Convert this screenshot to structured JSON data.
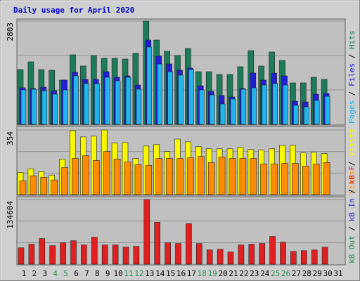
{
  "chart_data": {
    "type": "bar",
    "title": "Daily usage for April 2020",
    "separator": " / ",
    "categories": [
      "1",
      "2",
      "3",
      "4",
      "5",
      "6",
      "7",
      "8",
      "9",
      "10",
      "11",
      "12",
      "13",
      "14",
      "15",
      "16",
      "17",
      "18",
      "19",
      "20",
      "21",
      "22",
      "23",
      "24",
      "25",
      "26",
      "27",
      "28",
      "29",
      "30",
      "31"
    ],
    "category_colors": [
      "#000000",
      "#000000",
      "#000000",
      "#2e8b57",
      "#2e8b57",
      "#000000",
      "#000000",
      "#000000",
      "#000000",
      "#000000",
      "#2e8b57",
      "#2e8b57",
      "#000000",
      "#000000",
      "#000000",
      "#000000",
      "#000000",
      "#2e8b57",
      "#2e8b57",
      "#000000",
      "#000000",
      "#000000",
      "#000000",
      "#000000",
      "#2e8b57",
      "#2e8b57",
      "#000000",
      "#000000",
      "#000000",
      "#000000",
      "#000000"
    ],
    "panels": [
      {
        "ylim": [
          0,
          2803
        ],
        "yticks": [
          2803
        ],
        "series": [
          {
            "name": "Hits",
            "color": "#1e7b5a",
            "values": [
              1487,
              1697,
              1487,
              1468,
              1201,
              1888,
              1583,
              1869,
              1793,
              1793,
              1773,
              1926,
              2803,
              2288,
              1983,
              1869,
              2060,
              1430,
              1430,
              1354,
              1354,
              1564,
              2002,
              1583,
              1964,
              1735,
              1125,
              1125,
              1278,
              1220,
              null
            ]
          },
          {
            "name": "Files",
            "color": "#2020d0",
            "values": [
              992,
              972,
              1011,
              915,
              1201,
              1411,
              1220,
              1220,
              1430,
              1278,
              1316,
              1068,
              2288,
              1850,
              1640,
              1468,
              1526,
              1049,
              896,
              782,
              744,
              972,
              1392,
              1201,
              1392,
              1316,
              629,
              610,
              820,
              839,
              null
            ]
          },
          {
            "name": "Pages",
            "color": "#22b4ec",
            "values": [
              934,
              953,
              915,
              820,
              934,
              1316,
              1106,
              1106,
              1278,
              1182,
              1278,
              953,
              2098,
              1640,
              1430,
              1335,
              1487,
              934,
              801,
              553,
              687,
              953,
              992,
              1068,
              1106,
              1068,
              515,
              477,
              648,
              763,
              null
            ]
          }
        ]
      },
      {
        "ylim": [
          0,
          354
        ],
        "yticks": [
          354
        ],
        "series": [
          {
            "name": "Visits",
            "color": "#f8f800",
            "values": [
              122,
              141,
              126,
              107,
              194,
              350,
              316,
              320,
              354,
              282,
              285,
              198,
              266,
              274,
              236,
              304,
              289,
              263,
              251,
              251,
              251,
              259,
              247,
              244,
              251,
              270,
              270,
              228,
              232,
              225,
              null
            ]
          },
          {
            "name": "Sites",
            "color": "#ff8c00",
            "values": [
              76,
              103,
              95,
              80,
              148,
              198,
              213,
              187,
              236,
              194,
              179,
              164,
              160,
              198,
              198,
              198,
              202,
              209,
              175,
              206,
              198,
              198,
              198,
              167,
              167,
              171,
              171,
              156,
              167,
              175,
              null
            ]
          }
        ]
      },
      {
        "ylim": [
          0,
          134604
        ],
        "yticks": [
          134604
        ],
        "series": [
          {
            "name": "kB F",
            "color": "#e02020",
            "values": [
              34017,
              41412,
              53244,
              38454,
              44370,
              48807,
              39933,
              56202,
              39933,
              39933,
              35496,
              36975,
              134604,
              87261,
              44370,
              42891,
              84303,
              42891,
              29580,
              31059,
              25143,
              39933,
              41412,
              42891,
              57681,
              45849,
              26622,
              28101,
              29580,
              35496,
              null
            ]
          },
          {
            "name": "kB In",
            "color": "#2020d0",
            "values": [
              null,
              null,
              null,
              null,
              null,
              null,
              null,
              null,
              null,
              null,
              null,
              null,
              null,
              null,
              null,
              null,
              null,
              null,
              null,
              null,
              null,
              null,
              null,
              null,
              null,
              null,
              null,
              null,
              null,
              null,
              null
            ]
          },
          {
            "name": "kB Out",
            "color": "#2e8b57",
            "values": [
              null,
              null,
              null,
              null,
              null,
              null,
              null,
              null,
              null,
              null,
              null,
              null,
              null,
              null,
              null,
              null,
              null,
              null,
              null,
              null,
              null,
              null,
              null,
              null,
              null,
              null,
              null,
              null,
              null,
              null,
              null
            ]
          }
        ]
      }
    ]
  }
}
